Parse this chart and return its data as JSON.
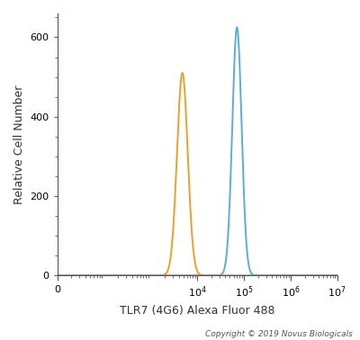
{
  "xlabel": "TLR7 (4G6) Alexa Fluor 488",
  "ylabel": "Relative Cell Number",
  "copyright": "Copyright © 2019 Novus Biologicals",
  "ylim": [
    0,
    660
  ],
  "yticks": [
    0,
    200,
    400,
    600
  ],
  "orange_color": "#E8A030",
  "blue_color": "#5BAED4",
  "orange_peak_x_log": 3.68,
  "orange_peak_y": 510,
  "orange_sigma_log": 0.115,
  "blue_peak_x_log": 4.85,
  "blue_peak_y": 625,
  "blue_sigma_log": 0.1,
  "baseline": 0,
  "bg_color": "#ffffff",
  "linewidth": 1.4,
  "xmin_log": 1.0,
  "xmax_log": 7.0,
  "xtick_positions": [
    0,
    10000,
    100000,
    1000000,
    10000000
  ],
  "xtick_labels": [
    "0",
    "$10^4$",
    "$10^5$",
    "$10^6$",
    "$10^7$"
  ]
}
